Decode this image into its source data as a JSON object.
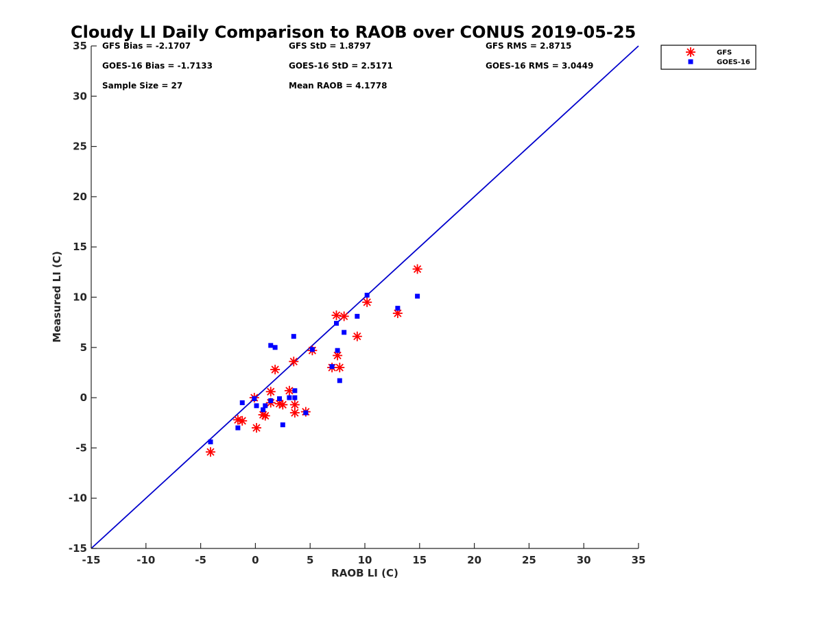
{
  "chart_data": {
    "type": "scatter",
    "title": "Cloudy LI Daily Comparison to RAOB over CONUS 2019-05-25",
    "xlabel": "RAOB LI (C)",
    "ylabel": "Measured LI (C)",
    "xlim": [
      -15,
      35
    ],
    "ylim": [
      -15,
      35
    ],
    "xticks": [
      "-15",
      "-10",
      "-5",
      "0",
      "5",
      "10",
      "15",
      "20",
      "25",
      "30",
      "35"
    ],
    "yticks": [
      "-15",
      "-10",
      "-5",
      "0",
      "5",
      "10",
      "15",
      "20",
      "25",
      "30",
      "35"
    ],
    "grid": false,
    "legend_position": "outside-top-right",
    "reference_line": {
      "label": "",
      "x": [
        -15,
        35
      ],
      "y": [
        -15,
        35
      ],
      "color": "#0000cc"
    },
    "stats": [
      [
        "GFS Bias = -2.1707",
        "GFS StD = 1.8797",
        "GFS RMS = 2.8715"
      ],
      [
        "GOES-16 Bias = -1.7133",
        "GOES-16 StD = 2.5171",
        "GOES-16 RMS = 3.0449"
      ],
      [
        "Sample Size = 27",
        "Mean RAOB = 4.1778",
        ""
      ]
    ],
    "series": [
      {
        "name": "GFS",
        "marker": "asterisk",
        "color": "#ff0000",
        "points": [
          [
            -4.1,
            -5.4
          ],
          [
            -1.6,
            -2.2
          ],
          [
            -1.2,
            -2.3
          ],
          [
            -0.1,
            0.0
          ],
          [
            0.1,
            -3.0
          ],
          [
            0.7,
            -1.7
          ],
          [
            0.9,
            -1.8
          ],
          [
            1.4,
            0.6
          ],
          [
            1.4,
            -0.5
          ],
          [
            1.8,
            2.8
          ],
          [
            2.2,
            -0.6
          ],
          [
            2.5,
            -0.7
          ],
          [
            3.1,
            0.7
          ],
          [
            3.5,
            3.6
          ],
          [
            3.6,
            -0.7
          ],
          [
            3.6,
            -1.5
          ],
          [
            4.6,
            -1.4
          ],
          [
            5.2,
            4.7
          ],
          [
            7.0,
            3.0
          ],
          [
            7.4,
            8.2
          ],
          [
            7.5,
            4.2
          ],
          [
            7.7,
            3.0
          ],
          [
            8.1,
            8.1
          ],
          [
            9.3,
            6.1
          ],
          [
            10.2,
            9.5
          ],
          [
            13.0,
            8.4
          ],
          [
            14.8,
            12.8
          ]
        ]
      },
      {
        "name": "GOES-16",
        "marker": "square",
        "color": "#0000ff",
        "points": [
          [
            -4.1,
            -4.4
          ],
          [
            -1.6,
            -3.0
          ],
          [
            -1.2,
            -0.5
          ],
          [
            -0.1,
            -0.1
          ],
          [
            0.1,
            -0.8
          ],
          [
            0.7,
            -1.2
          ],
          [
            0.9,
            -0.8
          ],
          [
            1.4,
            5.2
          ],
          [
            1.4,
            -0.3
          ],
          [
            1.8,
            5.0
          ],
          [
            2.2,
            -0.1
          ],
          [
            2.5,
            -2.7
          ],
          [
            3.1,
            0.0
          ],
          [
            3.5,
            6.1
          ],
          [
            3.6,
            0.7
          ],
          [
            3.6,
            0.0
          ],
          [
            4.6,
            -1.5
          ],
          [
            5.2,
            4.8
          ],
          [
            7.0,
            3.1
          ],
          [
            7.4,
            7.4
          ],
          [
            7.5,
            4.7
          ],
          [
            7.7,
            1.7
          ],
          [
            8.1,
            6.5
          ],
          [
            9.3,
            8.1
          ],
          [
            10.2,
            10.2
          ],
          [
            13.0,
            8.9
          ],
          [
            14.8,
            10.1
          ]
        ]
      }
    ]
  }
}
